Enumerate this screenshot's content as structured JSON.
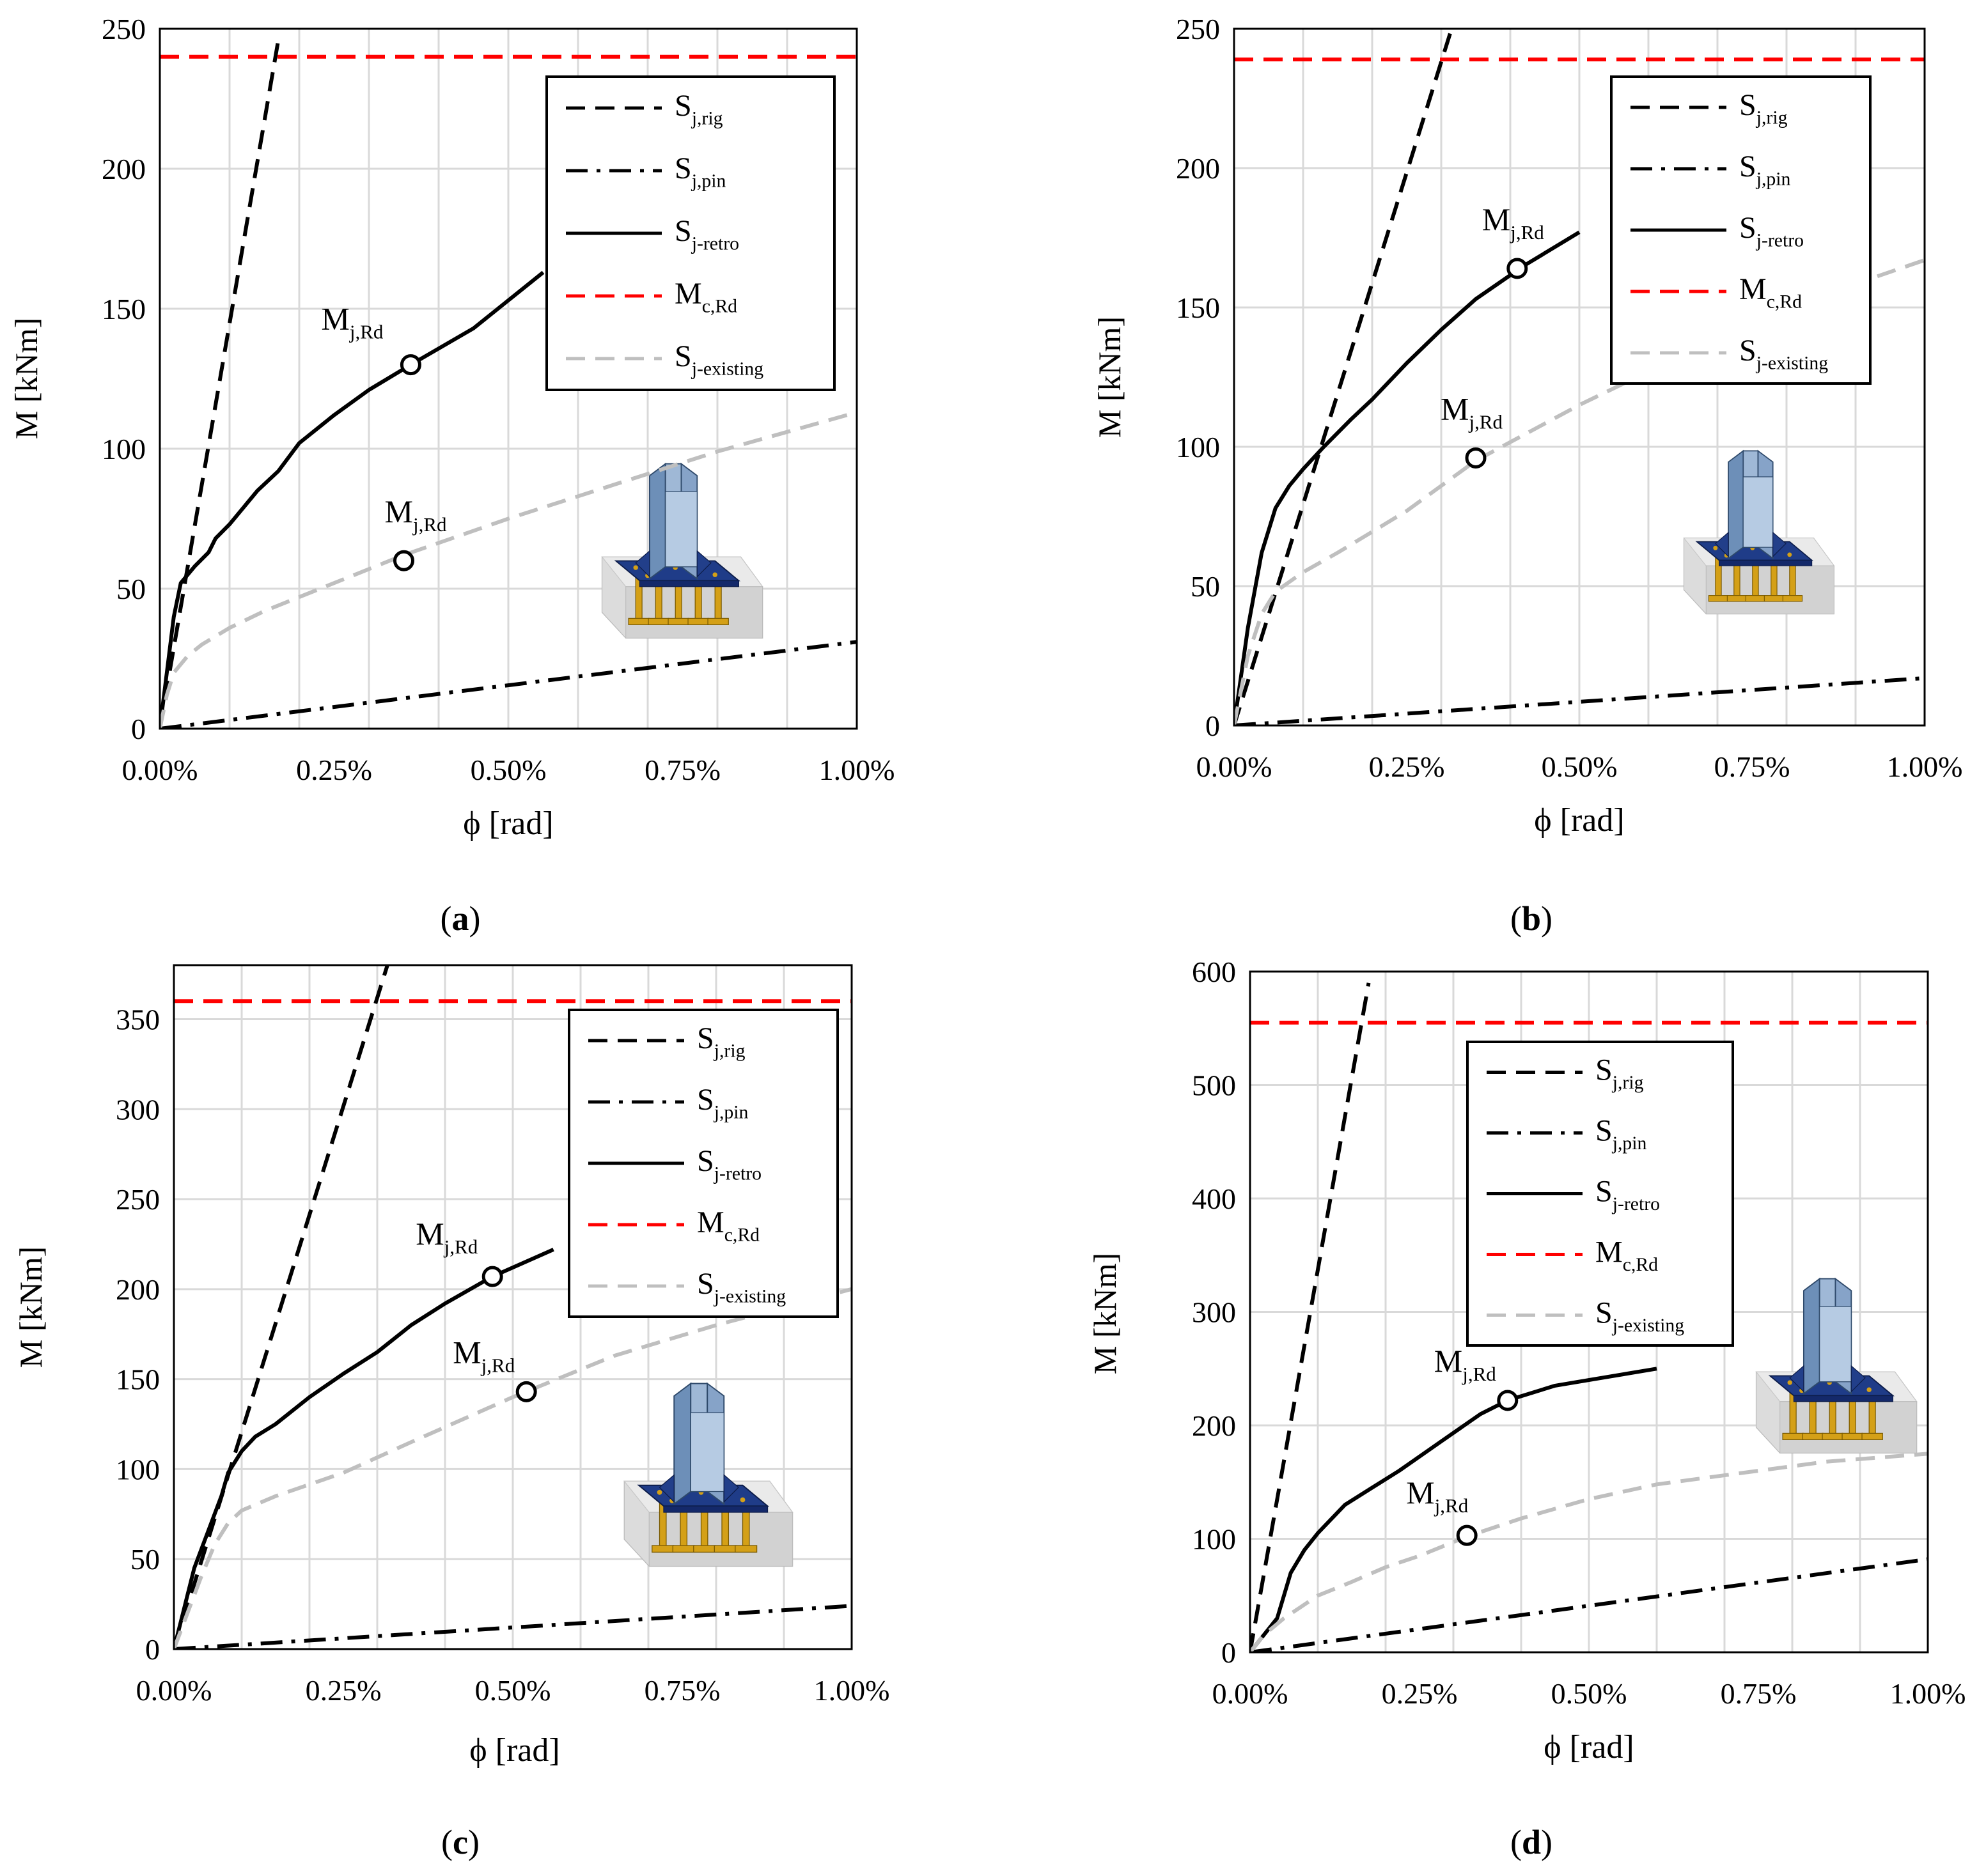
{
  "chart_data": [
    {
      "type": "line",
      "panel_label": "a",
      "xlabel": "ϕ [rad]",
      "ylabel": "M [kNm]",
      "xlim": [
        0,
        1.0
      ],
      "ylim": [
        0,
        250
      ],
      "xticks": [
        0,
        0.25,
        0.5,
        0.75,
        1.0
      ],
      "xtick_labels": [
        "0.00%",
        "0.25%",
        "0.50%",
        "0.75%",
        "1.00%"
      ],
      "yticks": [
        0,
        50,
        100,
        150,
        200,
        250
      ],
      "ytick_labels": [
        "0",
        "50",
        "100",
        "150",
        "200",
        "250"
      ],
      "grid": true,
      "legend_position": "top-right",
      "series": [
        {
          "name": "S_j,rig",
          "label_main": "S",
          "label_sub": "j,rig",
          "style": "dash",
          "color": "#000000",
          "x": [
            0,
            0.17
          ],
          "y": [
            0,
            246
          ]
        },
        {
          "name": "S_j,pin",
          "label_main": "S",
          "label_sub": "j,pin",
          "style": "dashdot",
          "color": "#000000",
          "x": [
            0,
            1.0
          ],
          "y": [
            0,
            31
          ]
        },
        {
          "name": "S_j-retro",
          "label_main": "S",
          "label_sub": "j-retro",
          "style": "solid",
          "color": "#000000",
          "x": [
            0,
            0.01,
            0.02,
            0.03,
            0.05,
            0.07,
            0.08,
            0.1,
            0.14,
            0.17,
            0.2,
            0.25,
            0.3,
            0.36,
            0.45,
            0.55
          ],
          "y": [
            0,
            20,
            40,
            52,
            58,
            63,
            68,
            73,
            85,
            92,
            102,
            112,
            121,
            130,
            143,
            163
          ]
        },
        {
          "name": "M_c,Rd",
          "label_main": "M",
          "label_sub": "c,Rd",
          "style": "dash",
          "color": "#ff0000",
          "x": [
            0,
            1.0
          ],
          "y": [
            240,
            240
          ]
        },
        {
          "name": "S_j-existing",
          "label_main": "S",
          "label_sub": "j-existing",
          "style": "dash",
          "color": "#bfbfbf",
          "x": [
            0,
            0.01,
            0.02,
            0.04,
            0.06,
            0.1,
            0.15,
            0.25,
            0.35,
            0.5,
            0.65,
            0.8,
            1.0
          ],
          "y": [
            0,
            12,
            20,
            26,
            30,
            36,
            42,
            52,
            62,
            75,
            87,
            99,
            113
          ]
        }
      ],
      "markers": [
        {
          "x": 0.36,
          "y": 130,
          "label_main": "M",
          "label_sub": "j,Rd"
        },
        {
          "x": 0.35,
          "y": 60,
          "label_main": "M",
          "label_sub": "j,Rd"
        }
      ]
    },
    {
      "type": "line",
      "panel_label": "b",
      "xlabel": "ϕ [rad]",
      "ylabel": "M [kNm]",
      "xlim": [
        0,
        1.0
      ],
      "ylim": [
        0,
        250
      ],
      "xticks": [
        0,
        0.25,
        0.5,
        0.75,
        1.0
      ],
      "xtick_labels": [
        "0.00%",
        "0.25%",
        "0.50%",
        "0.75%",
        "1.00%"
      ],
      "yticks": [
        0,
        50,
        100,
        150,
        200,
        250
      ],
      "ytick_labels": [
        "0",
        "50",
        "100",
        "150",
        "200",
        "250"
      ],
      "grid": true,
      "legend_position": "top-right",
      "series": [
        {
          "name": "S_j,rig",
          "label_main": "S",
          "label_sub": "j,rig",
          "style": "dash",
          "color": "#000000",
          "x": [
            0,
            0.315
          ],
          "y": [
            0,
            250
          ]
        },
        {
          "name": "S_j,pin",
          "label_main": "S",
          "label_sub": "j,pin",
          "style": "dashdot",
          "color": "#000000",
          "x": [
            0,
            1.0
          ],
          "y": [
            0,
            17
          ]
        },
        {
          "name": "S_j-retro",
          "label_main": "S",
          "label_sub": "j-retro",
          "style": "solid",
          "color": "#000000",
          "x": [
            0,
            0.02,
            0.04,
            0.06,
            0.08,
            0.1,
            0.13,
            0.17,
            0.2,
            0.25,
            0.3,
            0.35,
            0.42,
            0.5
          ],
          "y": [
            0,
            35,
            62,
            78,
            86,
            92,
            100,
            110,
            117,
            130,
            142,
            153,
            165,
            177
          ]
        },
        {
          "name": "M_c,Rd",
          "label_main": "M",
          "label_sub": "c,Rd",
          "style": "dash",
          "color": "#ff0000",
          "x": [
            0,
            1.0
          ],
          "y": [
            239,
            239
          ]
        },
        {
          "name": "S_j-existing",
          "label_main": "S",
          "label_sub": "j-existing",
          "style": "dash",
          "color": "#bfbfbf",
          "x": [
            0,
            0.02,
            0.04,
            0.06,
            0.1,
            0.15,
            0.25,
            0.35,
            0.5,
            0.65,
            0.8,
            1.0
          ],
          "y": [
            0,
            25,
            40,
            48,
            55,
            62,
            77,
            95,
            115,
            133,
            150,
            167
          ]
        }
      ],
      "markers": [
        {
          "x": 0.41,
          "y": 164,
          "label_main": "M",
          "label_sub": "j,Rd"
        },
        {
          "x": 0.35,
          "y": 96,
          "label_main": "M",
          "label_sub": "j,Rd"
        }
      ]
    },
    {
      "type": "line",
      "panel_label": "c",
      "xlabel": "ϕ [rad]",
      "ylabel": "M [kNm]",
      "xlim": [
        0,
        1.0
      ],
      "ylim": [
        0,
        380
      ],
      "xticks": [
        0,
        0.25,
        0.5,
        0.75,
        1.0
      ],
      "xtick_labels": [
        "0.00%",
        "0.25%",
        "0.50%",
        "0.75%",
        "1.00%"
      ],
      "yticks": [
        0,
        50,
        100,
        150,
        200,
        250,
        300,
        350
      ],
      "ytick_labels": [
        "0",
        "50",
        "100",
        "150",
        "200",
        "250",
        "300",
        "350"
      ],
      "grid": true,
      "legend_position": "top-right",
      "series": [
        {
          "name": "S_j,rig",
          "label_main": "S",
          "label_sub": "j,rig",
          "style": "dash",
          "color": "#000000",
          "x": [
            0,
            0.315
          ],
          "y": [
            0,
            380
          ]
        },
        {
          "name": "S_j,pin",
          "label_main": "S",
          "label_sub": "j,pin",
          "style": "dashdot",
          "color": "#000000",
          "x": [
            0,
            1.0
          ],
          "y": [
            0,
            24
          ]
        },
        {
          "name": "S_j-retro",
          "label_main": "S",
          "label_sub": "j-retro",
          "style": "solid",
          "color": "#000000",
          "x": [
            0,
            0.01,
            0.02,
            0.03,
            0.05,
            0.07,
            0.08,
            0.1,
            0.12,
            0.15,
            0.2,
            0.25,
            0.3,
            0.35,
            0.4,
            0.47,
            0.56
          ],
          "y": [
            0,
            15,
            30,
            45,
            65,
            85,
            98,
            110,
            118,
            125,
            140,
            153,
            165,
            180,
            192,
            207,
            222
          ]
        },
        {
          "name": "M_c,Rd",
          "label_main": "M",
          "label_sub": "c,Rd",
          "style": "dash",
          "color": "#ff0000",
          "x": [
            0,
            1.0
          ],
          "y": [
            360,
            360
          ]
        },
        {
          "name": "S_j-existing",
          "label_main": "S",
          "label_sub": "j-existing",
          "style": "dash",
          "color": "#bfbfbf",
          "x": [
            0,
            0.02,
            0.04,
            0.06,
            0.08,
            0.1,
            0.15,
            0.25,
            0.35,
            0.5,
            0.65,
            0.8,
            1.0
          ],
          "y": [
            0,
            20,
            40,
            58,
            70,
            77,
            85,
            98,
            115,
            140,
            163,
            180,
            200
          ]
        }
      ],
      "markers": [
        {
          "x": 0.47,
          "y": 207,
          "label_main": "M",
          "label_sub": "j,Rd"
        },
        {
          "x": 0.52,
          "y": 143,
          "label_main": "M",
          "label_sub": "j,Rd"
        }
      ]
    },
    {
      "type": "line",
      "panel_label": "d",
      "xlabel": "ϕ [rad]",
      "ylabel": "M [kNm]",
      "xlim": [
        0,
        1.0
      ],
      "ylim": [
        0,
        600
      ],
      "xticks": [
        0,
        0.25,
        0.5,
        0.75,
        1.0
      ],
      "xtick_labels": [
        "0.00%",
        "0.25%",
        "0.50%",
        "0.75%",
        "1.00%"
      ],
      "yticks": [
        0,
        100,
        200,
        300,
        400,
        500,
        600
      ],
      "ytick_labels": [
        "0",
        "100",
        "200",
        "300",
        "400",
        "500",
        "600"
      ],
      "grid": true,
      "legend_position": "top-right",
      "series": [
        {
          "name": "S_j,rig",
          "label_main": "S",
          "label_sub": "j,rig",
          "style": "dash",
          "color": "#000000",
          "x": [
            0,
            0.175
          ],
          "y": [
            0,
            590
          ]
        },
        {
          "name": "S_j,pin",
          "label_main": "S",
          "label_sub": "j,pin",
          "style": "dashdot",
          "color": "#000000",
          "x": [
            0,
            1.0
          ],
          "y": [
            0,
            82
          ]
        },
        {
          "name": "S_j-retro",
          "label_main": "S",
          "label_sub": "j-retro",
          "style": "solid",
          "color": "#000000",
          "x": [
            0,
            0.02,
            0.04,
            0.06,
            0.08,
            0.1,
            0.14,
            0.18,
            0.22,
            0.28,
            0.34,
            0.38,
            0.45,
            0.6
          ],
          "y": [
            0,
            15,
            30,
            70,
            90,
            105,
            130,
            145,
            160,
            185,
            210,
            222,
            235,
            250
          ]
        },
        {
          "name": "M_c,Rd",
          "label_main": "M",
          "label_sub": "c,Rd",
          "style": "dash",
          "color": "#ff0000",
          "x": [
            0,
            1.0
          ],
          "y": [
            555,
            555
          ]
        },
        {
          "name": "S_j-existing",
          "label_main": "S",
          "label_sub": "j-existing",
          "style": "dash",
          "color": "#bfbfbf",
          "x": [
            0,
            0.02,
            0.05,
            0.1,
            0.15,
            0.2,
            0.25,
            0.32,
            0.4,
            0.5,
            0.6,
            0.75,
            0.85,
            1.0
          ],
          "y": [
            0,
            15,
            30,
            50,
            62,
            75,
            85,
            102,
            118,
            135,
            148,
            160,
            168,
            175
          ]
        }
      ],
      "markers": [
        {
          "x": 0.38,
          "y": 222,
          "label_main": "M",
          "label_sub": "j,Rd"
        },
        {
          "x": 0.32,
          "y": 103,
          "label_main": "M",
          "label_sub": "j,Rd"
        }
      ]
    }
  ]
}
